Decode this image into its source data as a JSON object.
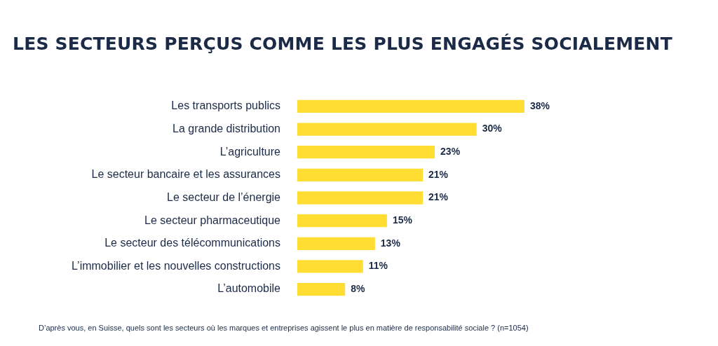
{
  "chart_data": {
    "type": "bar",
    "orientation": "horizontal",
    "title": "LES SECTEURS PERÇUS COMME LES PLUS ENGAGÉS SOCIALEMENT",
    "categories": [
      "Les transports publics",
      "La grande distribution",
      "L’agriculture",
      "Le secteur bancaire et les assurances",
      "Le secteur de l’énergie",
      "Le secteur pharmaceutique",
      "Le secteur des télécommunications",
      "L’immobilier et les nouvelles constructions",
      "L’automobile"
    ],
    "values": [
      38,
      30,
      23,
      21,
      21,
      15,
      13,
      11,
      8
    ],
    "value_labels": [
      "38%",
      "30%",
      "23%",
      "21%",
      "21%",
      "15%",
      "13%",
      "11%",
      "8%"
    ],
    "color": "#ffdd33",
    "tick_labels": "y",
    "annotations": [
      "D’après vous, en Suisse, quels sont les secteurs où les marques et entreprises agissent le plus en matière de responsabilité sociale ? (n=1054)"
    ]
  }
}
